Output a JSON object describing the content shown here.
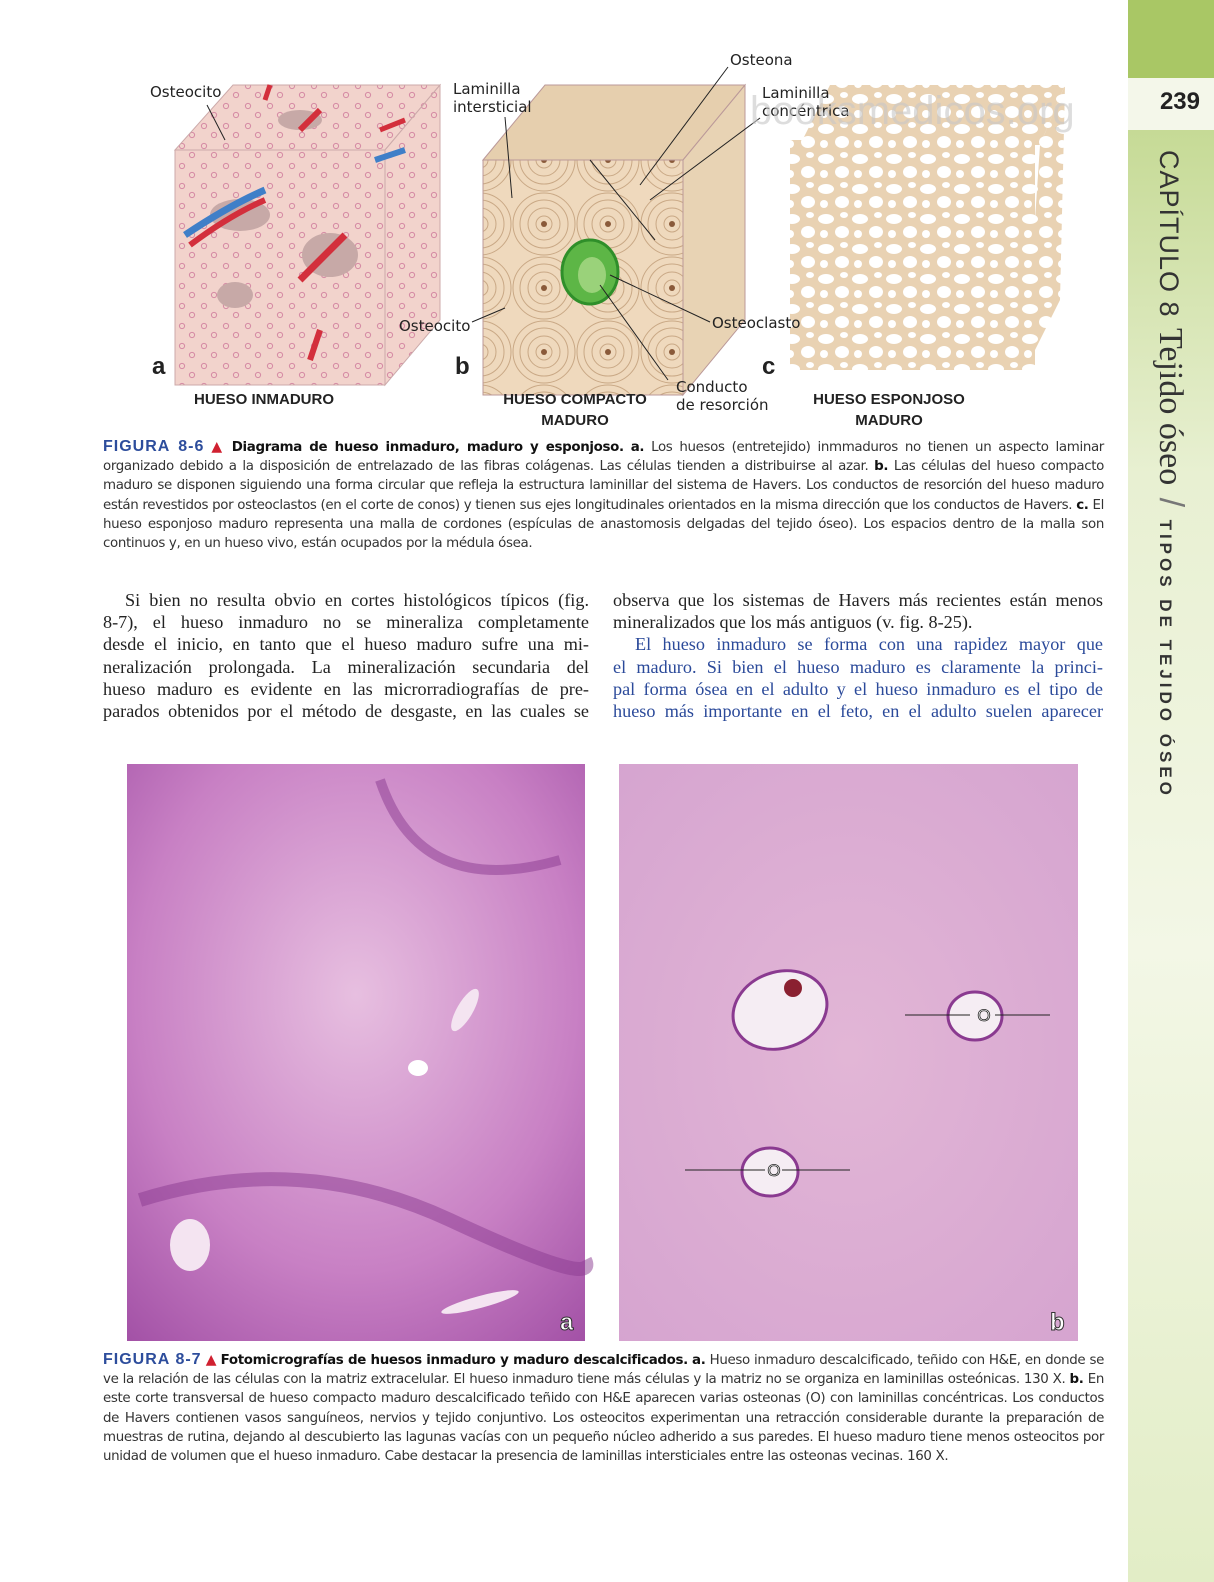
{
  "sidebar": {
    "page_number": "239",
    "chapter": "CAPÍTULO 8",
    "chapter_title": "Tejido óseo",
    "section": "TIPOS DE TEJIDO ÓSEO"
  },
  "watermark": "booksmedicos.org",
  "figure_8_6": {
    "labels": {
      "osteocito_a": "Osteocito",
      "laminilla_intersticial": [
        "Laminilla",
        "intersticial"
      ],
      "osteona": "Osteona",
      "laminilla_concentrica": [
        "Laminilla",
        "concéntrica"
      ],
      "osteocito_b": "Osteocito",
      "osteoclasto": "Osteoclasto",
      "conducto": [
        "Conducto",
        "de resorción"
      ]
    },
    "panels": [
      {
        "letter": "a",
        "title": [
          "HUESO INMADURO"
        ]
      },
      {
        "letter": "b",
        "title": [
          "HUESO COMPACTO",
          "MADURO"
        ]
      },
      {
        "letter": "c",
        "title": [
          "HUESO ESPONJOSO",
          "MADURO"
        ]
      }
    ],
    "caption": {
      "label": "FIGURA 8-6",
      "title": "Diagrama de hueso inmaduro, maduro y esponjoso.",
      "parts": [
        {
          "bold": "a.",
          "text": "Los huesos (entretejido) inmmaduros no tienen un aspecto laminar organizado debido a la disposición de entrelazado de las fibras colágenas. Las células tienden a distribuirse al azar."
        },
        {
          "bold": "b.",
          "text": "Las células del hueso compacto maduro se disponen siguiendo una forma circular que refleja la estructura laminillar del sistema de Havers. Los conductos de resorción del hueso maduro están revestidos por osteoclastos (en el corte de conos) y tienen sus ejes longitudinales orientados en la misma dirección que los conductos de Havers."
        },
        {
          "bold": "c.",
          "text": "El hueso esponjoso maduro representa una malla de cordones (espículas de anastomosis delgadas del tejido óseo). Los espacios dentro de la malla son continuos y, en un hueso vivo, están ocupados por la médula ósea."
        }
      ]
    }
  },
  "body": {
    "left": [
      "Si bien no resulta obvio en cortes histológicos típicos (fig.",
      "8-7), el hueso inmaduro no se mineraliza completamente",
      "desde el inicio, en tanto que el hueso maduro sufre una mi-",
      "neralización prolongada. La mineralización secundaria del",
      "hueso maduro es evidente en las microrradiografías de pre-",
      "parados obtenidos por el método de desgaste, en las cuales se"
    ],
    "right": [
      "observa que los sistemas de Havers más recientes están menos",
      "mineralizados que los más antiguos (v. fig. 8-25)."
    ],
    "right_highlight": [
      "El hueso inmaduro se forma con una rapidez mayor que",
      "el maduro. Si bien el hueso maduro es claramente la princi-",
      "pal forma ósea en el adulto y el hueso inmaduro es el tipo de",
      "hueso más importante en el feto, en el adulto suelen aparecer"
    ]
  },
  "figure_8_7": {
    "panels": [
      {
        "letter": "a"
      },
      {
        "letter": "b",
        "labels": [
          "O",
          "O"
        ]
      }
    ],
    "caption": {
      "label": "FIGURA 8-7",
      "title": "Fotomicrografías de huesos inmaduro y maduro descalcificados.",
      "parts": [
        {
          "bold": "a.",
          "text": "Hueso inmaduro descalcificado, teñido con H&E, en donde se ve la relación de las células con la matriz extracelular. El hueso inmaduro tiene más células y la matriz no se organiza en laminillas osteónicas. 130 X."
        },
        {
          "bold": "b.",
          "text": "En este corte transversal de hueso compacto maduro descalcificado teñido con H&E aparecen varias osteonas (O) con laminillas concéntricas. Los conductos de Havers contienen vasos sanguíneos, nervios y tejido conjuntivo. Los osteocitos experimentan una retracción considerable durante la preparación de muestras de rutina, dejando al descubierto las lagunas vacías con un pequeño núcleo adherido a sus paredes. El hueso maduro tiene menos osteocitos por unidad de volumen que el hueso inmaduro. Cabe destacar la presencia de laminillas intersticiales entre las osteonas vecinas. 160 X."
        }
      ]
    }
  }
}
